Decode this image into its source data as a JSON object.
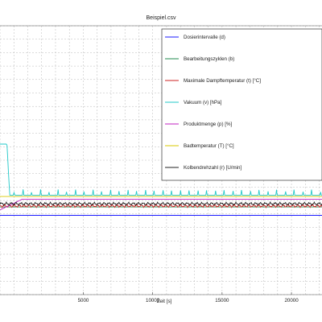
{
  "chart_data": {
    "type": "line",
    "title": "Beispiel.csv",
    "xlabel": "Zeit [s]",
    "ylabel": "",
    "xlim": [
      -1000,
      22200
    ],
    "ylim": [
      0,
      100
    ],
    "grid": true,
    "x_ticks": [
      5000,
      10000,
      15000,
      20000
    ],
    "x_tick_labels": [
      "5000",
      "10000",
      "15000",
      "20000"
    ],
    "legend_position": "top-right",
    "series": [
      {
        "name": "Dosierintervalle (d)",
        "color": "#1a1aff",
        "style": "flat",
        "level": 29.5
      },
      {
        "name": "Bearbeitungszyklen (b)",
        "color": "#1f8a4c",
        "style": "flat",
        "level": 32.6
      },
      {
        "name": "Maximale Dampftemperatur (t) [°C]",
        "color": "#cc2222",
        "style": "noisy",
        "level": 33.0
      },
      {
        "name": "Vakuum (v) [hPa]",
        "color": "#20c8c8",
        "style": "spiky",
        "level": 37.0,
        "start_peak": 56
      },
      {
        "name": "Produktmenge (p) [%]",
        "color": "#c020c0",
        "style": "ramp",
        "level": 35.5
      },
      {
        "name": "Badtemperatur (T) [°C]",
        "color": "#d8c800",
        "style": "flat",
        "level": 36.5
      },
      {
        "name": "Kolbendrehzahl (r) [U/min]",
        "color": "#222222",
        "style": "noisy",
        "level": 33.8
      }
    ]
  }
}
